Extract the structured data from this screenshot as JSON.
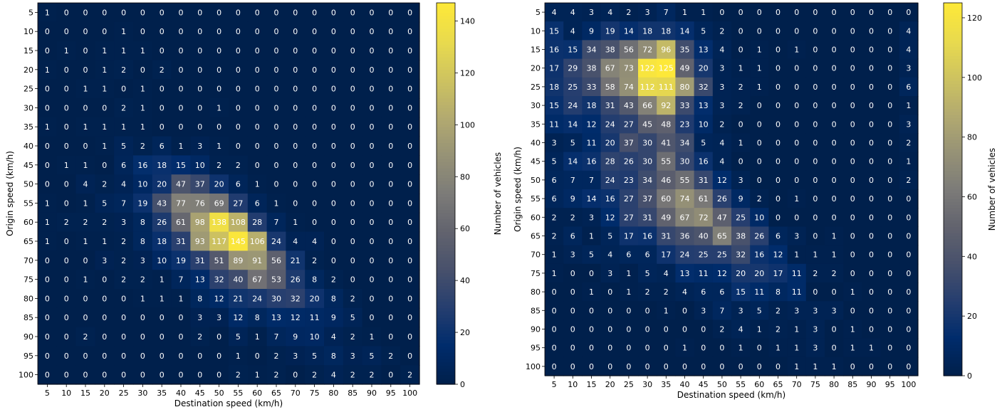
{
  "chart_data": [
    {
      "type": "heatmap",
      "xlabel": "Destination speed (km/h)",
      "ylabel": "Origin speed (km/h)",
      "x_categories": [
        "5",
        "10",
        "15",
        "20",
        "25",
        "30",
        "35",
        "40",
        "45",
        "50",
        "55",
        "60",
        "65",
        "70",
        "75",
        "80",
        "85",
        "90",
        "95",
        "100"
      ],
      "y_categories": [
        "5",
        "10",
        "15",
        "20",
        "25",
        "30",
        "35",
        "40",
        "45",
        "50",
        "55",
        "60",
        "65",
        "70",
        "75",
        "80",
        "85",
        "90",
        "95",
        "100"
      ],
      "values": [
        [
          1,
          0,
          0,
          0,
          0,
          0,
          0,
          0,
          0,
          0,
          0,
          0,
          0,
          0,
          0,
          0,
          0,
          0,
          0,
          0
        ],
        [
          0,
          0,
          0,
          0,
          1,
          0,
          0,
          0,
          0,
          0,
          0,
          0,
          0,
          0,
          0,
          0,
          0,
          0,
          0,
          0
        ],
        [
          0,
          1,
          0,
          1,
          1,
          1,
          0,
          0,
          0,
          0,
          0,
          0,
          0,
          0,
          0,
          0,
          0,
          0,
          0,
          0
        ],
        [
          1,
          0,
          0,
          1,
          2,
          0,
          2,
          0,
          0,
          0,
          0,
          0,
          0,
          0,
          0,
          0,
          0,
          0,
          0,
          0
        ],
        [
          0,
          0,
          1,
          1,
          0,
          1,
          0,
          0,
          0,
          0,
          0,
          0,
          0,
          0,
          0,
          0,
          0,
          0,
          0,
          0
        ],
        [
          0,
          0,
          0,
          0,
          2,
          1,
          0,
          0,
          0,
          1,
          0,
          0,
          0,
          0,
          0,
          0,
          0,
          0,
          0,
          0
        ],
        [
          1,
          0,
          1,
          1,
          1,
          1,
          0,
          0,
          0,
          0,
          0,
          0,
          0,
          0,
          0,
          0,
          0,
          0,
          0,
          0
        ],
        [
          0,
          0,
          0,
          1,
          5,
          2,
          6,
          1,
          3,
          1,
          0,
          0,
          0,
          0,
          0,
          0,
          0,
          0,
          0,
          0
        ],
        [
          0,
          1,
          1,
          0,
          6,
          16,
          18,
          15,
          10,
          2,
          2,
          0,
          0,
          0,
          0,
          0,
          0,
          0,
          0,
          0
        ],
        [
          0,
          0,
          4,
          2,
          4,
          10,
          20,
          47,
          37,
          20,
          6,
          1,
          0,
          0,
          0,
          0,
          0,
          0,
          0,
          0
        ],
        [
          1,
          0,
          1,
          5,
          7,
          19,
          43,
          77,
          76,
          69,
          27,
          6,
          1,
          0,
          0,
          0,
          0,
          0,
          0,
          0
        ],
        [
          1,
          2,
          2,
          2,
          3,
          8,
          26,
          61,
          98,
          138,
          108,
          28,
          7,
          1,
          0,
          0,
          0,
          0,
          0,
          0
        ],
        [
          1,
          0,
          1,
          1,
          2,
          8,
          18,
          31,
          93,
          117,
          145,
          106,
          24,
          4,
          4,
          0,
          0,
          0,
          0,
          0
        ],
        [
          0,
          0,
          0,
          3,
          2,
          3,
          10,
          19,
          31,
          51,
          89,
          91,
          56,
          21,
          2,
          0,
          0,
          0,
          0,
          0
        ],
        [
          0,
          0,
          1,
          0,
          2,
          2,
          1,
          7,
          13,
          32,
          40,
          67,
          53,
          26,
          8,
          2,
          0,
          0,
          0,
          0
        ],
        [
          0,
          0,
          0,
          0,
          0,
          1,
          1,
          1,
          8,
          12,
          21,
          24,
          30,
          32,
          20,
          8,
          2,
          0,
          0,
          0
        ],
        [
          0,
          0,
          0,
          0,
          0,
          0,
          0,
          0,
          3,
          3,
          12,
          8,
          13,
          12,
          11,
          9,
          5,
          0,
          0,
          0
        ],
        [
          0,
          0,
          2,
          0,
          0,
          0,
          0,
          0,
          2,
          0,
          5,
          1,
          7,
          9,
          10,
          4,
          2,
          1,
          0,
          0
        ],
        [
          0,
          0,
          0,
          0,
          0,
          0,
          0,
          0,
          0,
          0,
          1,
          0,
          2,
          3,
          5,
          8,
          3,
          5,
          2,
          0
        ],
        [
          0,
          0,
          0,
          0,
          0,
          0,
          0,
          0,
          0,
          0,
          2,
          1,
          2,
          0,
          2,
          4,
          2,
          2,
          0,
          2
        ]
      ],
      "vmin": 0,
      "vmax": 147,
      "colorbar": {
        "label": "Number of vehicles",
        "ticks": [
          0,
          20,
          40,
          60,
          80,
          100,
          120,
          140
        ],
        "colormap": "cividis"
      }
    },
    {
      "type": "heatmap",
      "xlabel": "Destination speed (km/h)",
      "ylabel": "Origin speed (km/h)",
      "x_categories": [
        "5",
        "10",
        "15",
        "20",
        "25",
        "30",
        "35",
        "40",
        "45",
        "50",
        "55",
        "60",
        "65",
        "70",
        "75",
        "80",
        "85",
        "90",
        "95",
        "100"
      ],
      "y_categories": [
        "5",
        "10",
        "15",
        "20",
        "25",
        "30",
        "35",
        "40",
        "45",
        "50",
        "55",
        "60",
        "65",
        "70",
        "75",
        "80",
        "85",
        "90",
        "95",
        "100"
      ],
      "values": [
        [
          4,
          4,
          3,
          4,
          2,
          3,
          7,
          1,
          1,
          0,
          0,
          0,
          0,
          0,
          0,
          0,
          0,
          0,
          0,
          0
        ],
        [
          15,
          4,
          9,
          19,
          14,
          18,
          18,
          14,
          5,
          2,
          0,
          0,
          0,
          0,
          0,
          0,
          0,
          0,
          0,
          4
        ],
        [
          16,
          15,
          34,
          38,
          56,
          72,
          96,
          35,
          13,
          4,
          0,
          1,
          0,
          1,
          0,
          0,
          0,
          0,
          0,
          4
        ],
        [
          17,
          29,
          38,
          67,
          73,
          122,
          125,
          49,
          20,
          3,
          1,
          1,
          0,
          0,
          0,
          0,
          0,
          0,
          0,
          3
        ],
        [
          18,
          25,
          33,
          58,
          74,
          112,
          111,
          80,
          32,
          3,
          2,
          1,
          0,
          0,
          0,
          0,
          0,
          0,
          0,
          6
        ],
        [
          15,
          24,
          18,
          31,
          43,
          66,
          92,
          33,
          13,
          3,
          2,
          0,
          0,
          0,
          0,
          0,
          0,
          0,
          0,
          1
        ],
        [
          11,
          14,
          12,
          24,
          27,
          45,
          48,
          23,
          10,
          2,
          0,
          0,
          0,
          0,
          0,
          0,
          0,
          0,
          0,
          3
        ],
        [
          3,
          5,
          11,
          20,
          37,
          30,
          41,
          34,
          5,
          4,
          1,
          0,
          0,
          0,
          0,
          0,
          0,
          0,
          0,
          2
        ],
        [
          5,
          14,
          16,
          28,
          26,
          30,
          55,
          30,
          16,
          4,
          0,
          0,
          0,
          0,
          0,
          0,
          0,
          0,
          0,
          1
        ],
        [
          6,
          7,
          7,
          24,
          23,
          34,
          46,
          55,
          31,
          12,
          3,
          0,
          0,
          0,
          0,
          0,
          0,
          0,
          0,
          2
        ],
        [
          6,
          9,
          14,
          16,
          27,
          37,
          60,
          74,
          61,
          26,
          9,
          2,
          0,
          1,
          0,
          0,
          0,
          0,
          0,
          0
        ],
        [
          2,
          2,
          3,
          12,
          27,
          31,
          49,
          67,
          72,
          47,
          25,
          10,
          0,
          0,
          0,
          0,
          0,
          0,
          0,
          0
        ],
        [
          2,
          6,
          1,
          5,
          17,
          16,
          31,
          36,
          40,
          65,
          38,
          26,
          6,
          3,
          0,
          1,
          0,
          0,
          0,
          0
        ],
        [
          1,
          3,
          5,
          4,
          6,
          6,
          17,
          24,
          25,
          25,
          32,
          16,
          12,
          1,
          1,
          1,
          0,
          0,
          0,
          0
        ],
        [
          1,
          0,
          0,
          3,
          1,
          5,
          4,
          13,
          11,
          12,
          20,
          20,
          17,
          11,
          2,
          2,
          0,
          0,
          0,
          0
        ],
        [
          0,
          0,
          1,
          0,
          1,
          2,
          2,
          4,
          6,
          6,
          15,
          11,
          8,
          11,
          0,
          0,
          1,
          0,
          0,
          0
        ],
        [
          0,
          0,
          0,
          0,
          0,
          0,
          1,
          0,
          3,
          7,
          3,
          5,
          2,
          3,
          3,
          3,
          0,
          0,
          0,
          0
        ],
        [
          0,
          0,
          0,
          0,
          0,
          0,
          0,
          0,
          0,
          2,
          4,
          1,
          2,
          1,
          3,
          0,
          1,
          0,
          0,
          0
        ],
        [
          0,
          0,
          0,
          0,
          0,
          0,
          0,
          1,
          0,
          0,
          1,
          0,
          1,
          1,
          3,
          0,
          1,
          1,
          0,
          0
        ],
        [
          0,
          0,
          0,
          0,
          0,
          0,
          0,
          0,
          0,
          0,
          0,
          0,
          0,
          1,
          1,
          1,
          0,
          0,
          0,
          0
        ]
      ],
      "vmin": 0,
      "vmax": 125,
      "colorbar": {
        "label": "Number of vehicles",
        "ticks": [
          0,
          20,
          40,
          60,
          80,
          100,
          120
        ],
        "colormap": "cividis"
      }
    }
  ]
}
